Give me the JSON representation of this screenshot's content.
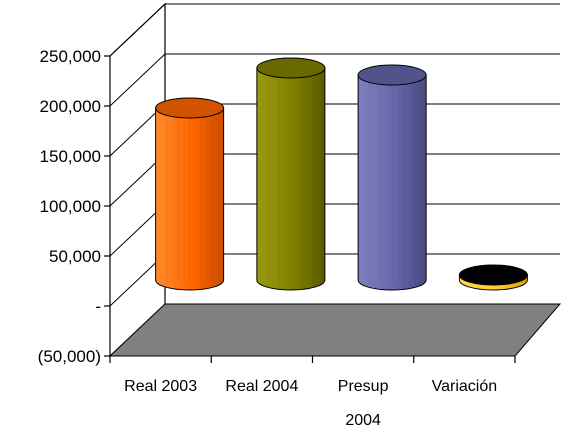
{
  "chart_data": {
    "type": "bar",
    "style": "3d-cylinder",
    "title": "",
    "xlabel": "",
    "ylabel": "",
    "categories": [
      "Real 2003",
      "Real 2004",
      "Presup\n2004",
      "Variación"
    ],
    "values": [
      172000,
      212000,
      205000,
      5000
    ],
    "colors": [
      "#ff6600",
      "#808000",
      "#6666aa",
      "#ffcc33"
    ],
    "ylim": [
      -50000,
      250000
    ],
    "yticks": [
      250000,
      200000,
      150000,
      100000,
      50000,
      0,
      -50000
    ],
    "ytick_labels": [
      "250,000",
      "200,000",
      "150,000",
      "100,000",
      "50,000",
      "-",
      "(50,000)"
    ],
    "grid": true,
    "legend": "none",
    "floor_color": "#808080"
  }
}
